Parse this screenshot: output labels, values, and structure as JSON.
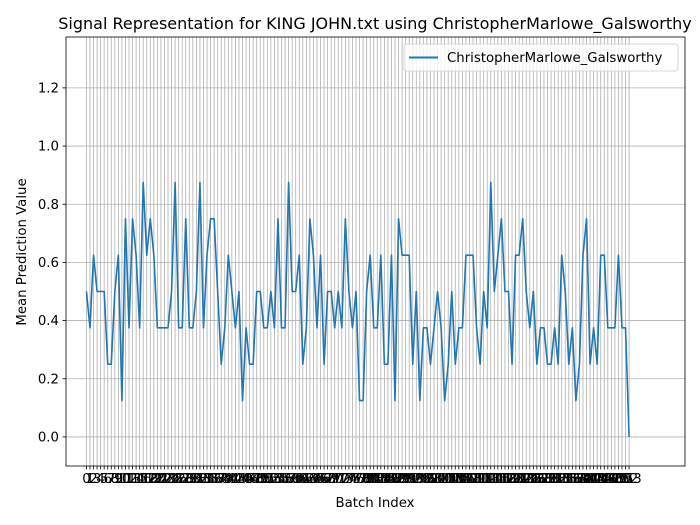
{
  "chart_data": {
    "type": "line",
    "title": "Signal Representation for KING JOHN.txt using ChristopherMarlowe_Galsworthy",
    "xlabel": "Batch Index",
    "ylabel": "Mean Prediction Value",
    "ylim": [
      -0.1,
      1.375
    ],
    "xlim": [
      -5.765,
      168.765
    ],
    "y_ticks": [
      "0.0",
      "0.2",
      "0.4",
      "0.6",
      "0.8",
      "1.0",
      "1.2"
    ],
    "x_tick_step": 1,
    "grid": true,
    "legend_position": "top-right",
    "color": "#1f77b4",
    "series": [
      {
        "name": "ChristopherMarlowe_Galsworthy",
        "values": [
          0.5,
          0.375,
          0.625,
          0.5,
          0.5,
          0.5,
          0.25,
          0.25,
          0.5,
          0.625,
          0.125,
          0.75,
          0.375,
          0.75,
          0.625,
          0.375,
          0.875,
          0.625,
          0.75,
          0.625,
          0.375,
          0.375,
          0.375,
          0.375,
          0.5,
          0.875,
          0.375,
          0.375,
          0.75,
          0.375,
          0.375,
          0.5,
          0.875,
          0.375,
          0.625,
          0.75,
          0.75,
          0.5,
          0.25,
          0.375,
          0.625,
          0.5,
          0.375,
          0.5,
          0.125,
          0.375,
          0.25,
          0.25,
          0.5,
          0.5,
          0.375,
          0.375,
          0.5,
          0.375,
          0.75,
          0.375,
          0.375,
          0.875,
          0.5,
          0.5,
          0.625,
          0.25,
          0.375,
          0.75,
          0.625,
          0.375,
          0.625,
          0.25,
          0.5,
          0.5,
          0.375,
          0.5,
          0.375,
          0.75,
          0.5,
          0.375,
          0.5,
          0.125,
          0.125,
          0.5,
          0.625,
          0.375,
          0.375,
          0.625,
          0.25,
          0.25,
          0.625,
          0.125,
          0.75,
          0.625,
          0.625,
          0.625,
          0.25,
          0.5,
          0.125,
          0.375,
          0.375,
          0.25,
          0.375,
          0.5,
          0.375,
          0.125,
          0.25,
          0.5,
          0.25,
          0.375,
          0.375,
          0.625,
          0.625,
          0.625,
          0.375,
          0.25,
          0.5,
          0.375,
          0.875,
          0.5,
          0.625,
          0.75,
          0.5,
          0.5,
          0.25,
          0.625,
          0.625,
          0.75,
          0.5,
          0.375,
          0.5,
          0.25,
          0.375,
          0.375,
          0.25,
          0.25,
          0.375,
          0.25,
          0.625,
          0.5,
          0.25,
          0.375,
          0.125,
          0.25,
          0.625,
          0.75,
          0.25,
          0.375,
          0.25,
          0.625,
          0.625,
          0.375,
          0.375,
          0.375,
          0.625,
          0.375,
          0.375,
          0.0
        ]
      }
    ]
  }
}
